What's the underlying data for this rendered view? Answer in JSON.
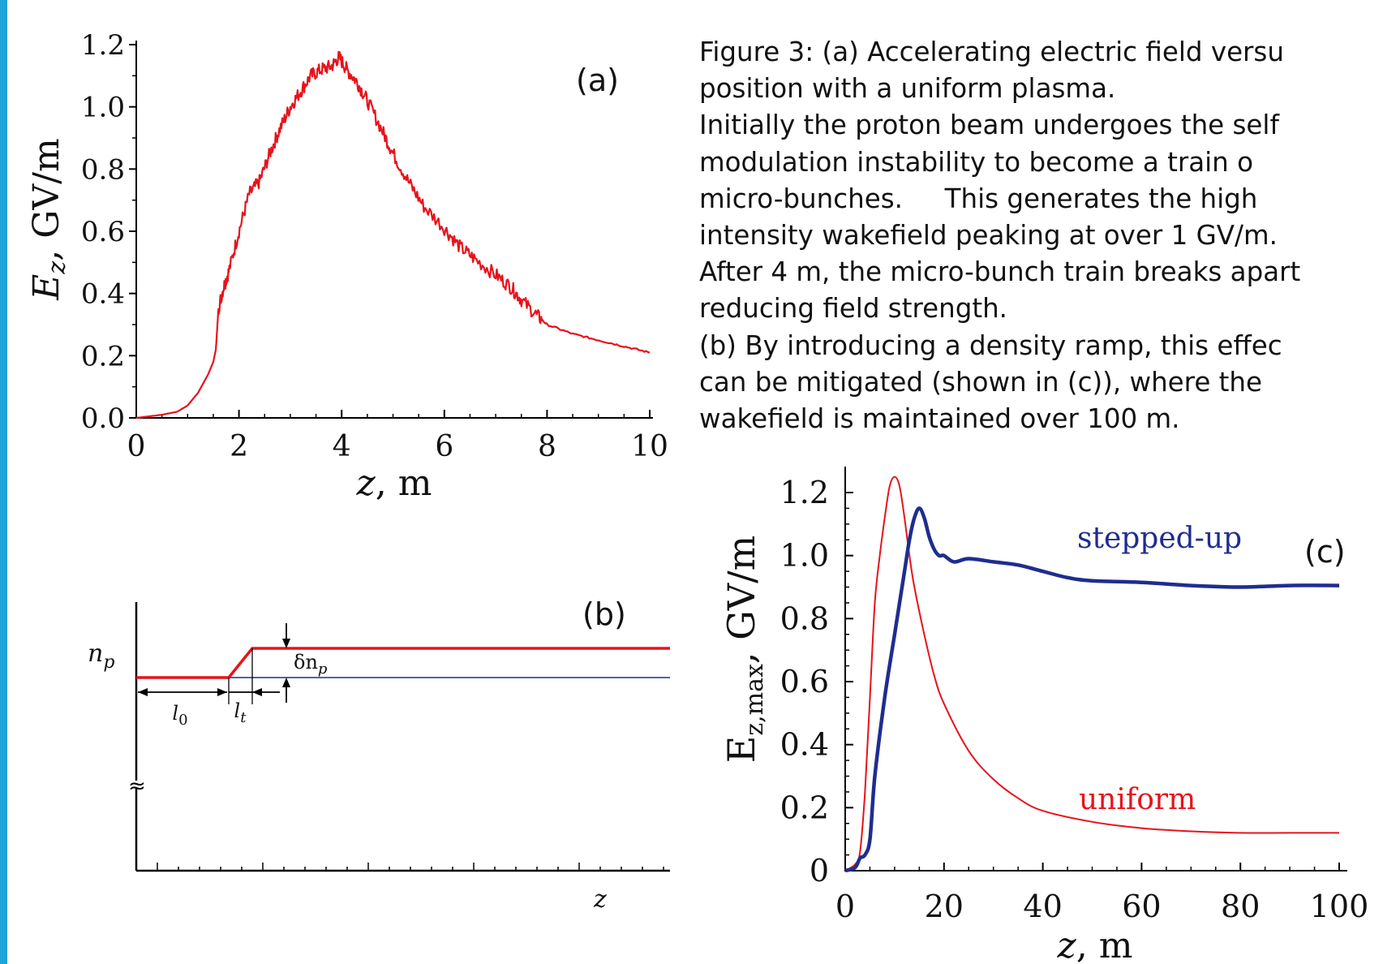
{
  "caption": {
    "lines": [
      "Figure 3: (a) Accelerating electric field versu",
      "position with a uniform plasma.",
      "Initially the proton beam undergoes the self",
      "modulation instability to become a train o",
      "micro-bunches.     This generates the high",
      "intensity wakefield peaking at over 1 GV/m.",
      "After 4 m, the micro-bunch train breaks apart",
      "reducing field strength.",
      "(b) By introducing a density ramp, this effec",
      "can be mitigated (shown in (c)), where the",
      "wakefield is maintained over 100 m."
    ]
  },
  "colors": {
    "accent_bar": "#1fa3d8",
    "red": "#e8121b",
    "blue": "#1f2d8f",
    "axis": "#000000"
  },
  "chart_data": [
    {
      "type": "line",
      "panel_label": "(a)",
      "ylabel_main": "E",
      "ylabel_sub": "z",
      "ylabel_unit": ", GV/m",
      "xlabel_main": "z",
      "xlabel_unit": ", m",
      "xlim": [
        0,
        10
      ],
      "ylim": [
        0,
        1.2
      ],
      "xticks": [
        "0",
        "2",
        "4",
        "6",
        "8",
        "10"
      ],
      "yticks": [
        "0.0",
        "0.2",
        "0.4",
        "0.6",
        "0.8",
        "1.0",
        "1.2"
      ],
      "grid": false,
      "series": [
        {
          "color": "#e8121b",
          "x": [
            0,
            0.5,
            0.8,
            1.0,
            1.2,
            1.4,
            1.5,
            1.55,
            1.6,
            1.7,
            1.8,
            2.0,
            2.2,
            2.4,
            2.6,
            2.8,
            3.0,
            3.2,
            3.4,
            3.6,
            3.8,
            3.95,
            4.1,
            4.3,
            4.5,
            4.8,
            5.0,
            5.3,
            5.6,
            6.0,
            6.3,
            6.6,
            7.0,
            7.3,
            7.5,
            7.8,
            8.0,
            8.5,
            9.0,
            9.5,
            10.0
          ],
          "y": [
            0.0,
            0.01,
            0.02,
            0.04,
            0.08,
            0.14,
            0.18,
            0.22,
            0.35,
            0.42,
            0.47,
            0.6,
            0.72,
            0.76,
            0.85,
            0.93,
            1.0,
            1.05,
            1.1,
            1.12,
            1.13,
            1.16,
            1.12,
            1.08,
            1.02,
            0.92,
            0.85,
            0.76,
            0.68,
            0.61,
            0.55,
            0.51,
            0.46,
            0.42,
            0.38,
            0.33,
            0.3,
            0.27,
            0.25,
            0.23,
            0.21
          ]
        }
      ]
    },
    {
      "type": "line",
      "panel_label": "(b)",
      "ylabel_main": "n",
      "ylabel_sub": "p",
      "xlabel_main": "z",
      "annotations": {
        "l0_main": "l",
        "l0_sub": "0",
        "lt_main": "l",
        "lt_sub": "t",
        "dn_main": "δn",
        "dn_sub": "p",
        "break_symbol": "≈"
      },
      "series": [
        {
          "color": "#e8121b",
          "shape": "step-up density profile"
        },
        {
          "color": "#1f2d8f",
          "shape": "uniform density"
        }
      ]
    },
    {
      "type": "line",
      "panel_label": "(c)",
      "ylabel_main": "E",
      "ylabel_sub": "z,max",
      "ylabel_unit": ", GV/m",
      "xlabel_main": "z",
      "xlabel_unit": ", m",
      "xlim": [
        0,
        100
      ],
      "ylim": [
        0,
        1.25
      ],
      "xticks": [
        "0",
        "20",
        "40",
        "60",
        "80",
        "100"
      ],
      "yticks": [
        "0",
        "0.2",
        "0.4",
        "0.6",
        "0.8",
        "1.0",
        "1.2"
      ],
      "grid": false,
      "series": [
        {
          "name": "stepped-up",
          "color": "#1f2d8f",
          "x": [
            0,
            2,
            3,
            4,
            5,
            6,
            8,
            10,
            12,
            13,
            14,
            15,
            16,
            17,
            18,
            19,
            20,
            22,
            25,
            30,
            35,
            40,
            45,
            50,
            60,
            70,
            80,
            90,
            100
          ],
          "y": [
            0.0,
            0.01,
            0.04,
            0.05,
            0.1,
            0.3,
            0.55,
            0.75,
            0.95,
            1.05,
            1.12,
            1.15,
            1.12,
            1.06,
            1.02,
            1.0,
            1.0,
            0.98,
            0.99,
            0.98,
            0.97,
            0.95,
            0.93,
            0.92,
            0.915,
            0.905,
            0.9,
            0.905,
            0.905
          ]
        },
        {
          "name": "uniform",
          "color": "#e8121b",
          "x": [
            0,
            2,
            3,
            4,
            5,
            6,
            7,
            8,
            9,
            10,
            11,
            12,
            13,
            14,
            16,
            18,
            20,
            25,
            30,
            35,
            40,
            50,
            60,
            70,
            80,
            90,
            100
          ],
          "y": [
            0.0,
            0.02,
            0.06,
            0.25,
            0.55,
            0.85,
            1.0,
            1.12,
            1.22,
            1.25,
            1.22,
            1.12,
            1.0,
            0.9,
            0.75,
            0.62,
            0.53,
            0.38,
            0.29,
            0.23,
            0.19,
            0.155,
            0.135,
            0.125,
            0.12,
            0.12,
            0.12
          ]
        }
      ]
    }
  ]
}
